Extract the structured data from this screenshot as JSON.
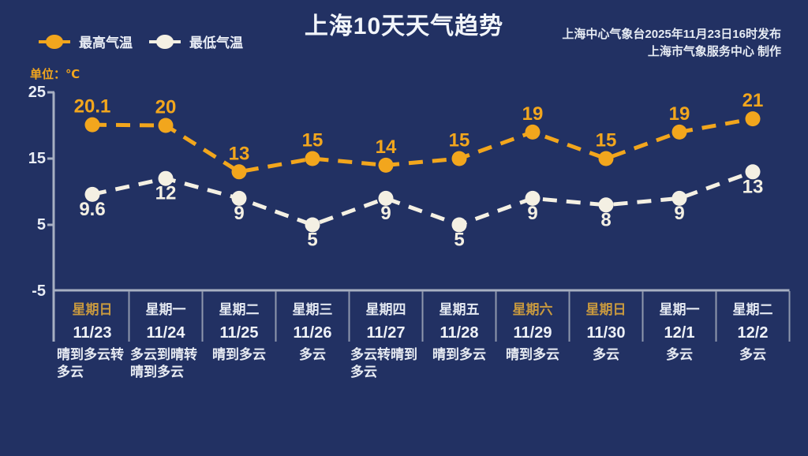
{
  "title": "上海10天天气趋势",
  "source": {
    "line1": "上海中心气象台2025年11月23日16时发布",
    "line2": "上海市气象服务中心 制作"
  },
  "unit_label": "单位：℃",
  "legend": [
    {
      "label": "最高气温",
      "color": "#F2A61D"
    },
    {
      "label": "最低气温",
      "color": "#F4F0E3"
    }
  ],
  "colors": {
    "background": "#223163",
    "high": "#F2A61D",
    "low": "#F4F0E3",
    "axis": "#A7AFC2",
    "separator": "#8F98AE",
    "text": "#E9EDF5",
    "weekend": "#C8993F",
    "weekday": "#E3E8F1"
  },
  "chart_data": {
    "type": "line",
    "title": "上海10天天气趋势",
    "xlabel": "",
    "ylabel": "单位：℃",
    "ylim": [
      -5,
      25
    ],
    "yticks": [
      25,
      15,
      5,
      -5
    ],
    "grid": false,
    "legend_position": "top-left",
    "line_style": "dashed",
    "categories": [
      "11/23",
      "11/24",
      "11/25",
      "11/26",
      "11/27",
      "11/28",
      "11/29",
      "11/30",
      "12/1",
      "12/2"
    ],
    "weekdays": [
      "星期日",
      "星期一",
      "星期二",
      "星期三",
      "星期四",
      "星期五",
      "星期六",
      "星期日",
      "星期一",
      "星期二"
    ],
    "weekend_flags": [
      true,
      false,
      false,
      false,
      false,
      false,
      true,
      true,
      false,
      false
    ],
    "weather": [
      "晴到多云转多云",
      "多云到晴转晴到多云",
      "晴到多云",
      "多云",
      "多云转晴到多云",
      "晴到多云",
      "晴到多云",
      "多云",
      "多云",
      "多云"
    ],
    "series": [
      {
        "name": "最高气温",
        "color": "#F2A61D",
        "values": [
          20.1,
          20,
          13,
          15,
          14,
          15,
          19,
          15,
          19,
          21
        ]
      },
      {
        "name": "最低气温",
        "color": "#F4F0E3",
        "values": [
          9.6,
          12,
          9,
          5,
          9,
          5,
          9,
          8,
          9,
          13
        ]
      }
    ]
  }
}
